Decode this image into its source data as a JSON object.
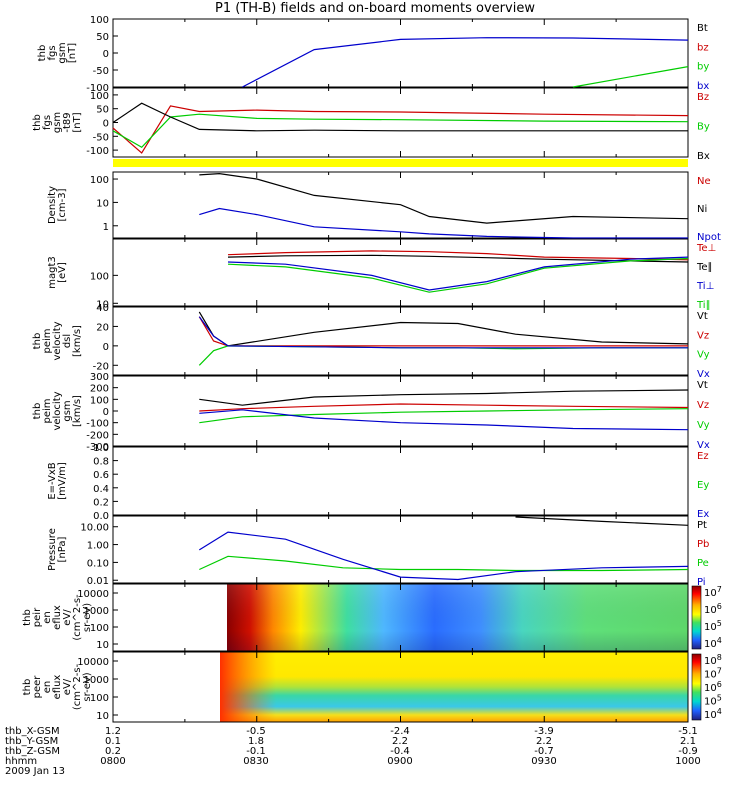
{
  "title": "P1 (TH-B) fields and on-board moments overview",
  "x_ticks": [
    "0800",
    "0830",
    "0900",
    "0930",
    "1000"
  ],
  "footer": {
    "rows": [
      {
        "label": "thb_X-GSM",
        "values": [
          "1.2",
          "-0.5",
          "-2.4",
          "-3.9",
          "-5.1"
        ]
      },
      {
        "label": "thb_Y-GSM",
        "values": [
          "0.1",
          "1.8",
          "2.2",
          "2.2",
          "2.1"
        ]
      },
      {
        "label": "thb_Z-GSM",
        "values": [
          "0.2",
          "-0.1",
          "-0.4",
          "-0.7",
          "-0.9"
        ]
      },
      {
        "label": "hhmm",
        "values": [
          "0800",
          "0830",
          "0900",
          "0930",
          "1000"
        ]
      }
    ],
    "date": "2009 Jan 13"
  },
  "chart_data": [
    {
      "type": "line",
      "title": "",
      "ylabel": [
        "thb",
        "fgs",
        "gsm",
        "[nT]"
      ],
      "yticks": [
        "100",
        "50",
        "0",
        "-50",
        "-100"
      ],
      "ylim": [
        -100,
        100
      ],
      "x": [
        8.0,
        8.22,
        8.45,
        8.7,
        9.0,
        9.3,
        9.6,
        10.0
      ],
      "series": [
        {
          "name": "Bt",
          "color": "#000000",
          "values": [
            null,
            null,
            null,
            null,
            null,
            null,
            null,
            null
          ]
        },
        {
          "name": "bz",
          "color": "#cc0000",
          "values": [
            null,
            null,
            null,
            null,
            null,
            null,
            null,
            null
          ]
        },
        {
          "name": "by",
          "color": "#00cc00",
          "values": [
            null,
            null,
            null,
            null,
            null,
            null,
            -100,
            -40
          ]
        },
        {
          "name": "bx",
          "color": "#0000cc",
          "values": [
            null,
            null,
            -100,
            10,
            40,
            45,
            44,
            38
          ]
        }
      ]
    },
    {
      "type": "line",
      "title": "",
      "ylabel": [
        "thb",
        "fgs",
        "gsm",
        "-t89",
        "[nT]"
      ],
      "yticks": [
        "100",
        "50",
        "0",
        "-50",
        "-100"
      ],
      "ylim": [
        -125,
        125
      ],
      "x": [
        8.0,
        8.1,
        8.2,
        8.3,
        8.5,
        8.7,
        9.0,
        9.5,
        10.0
      ],
      "series": [
        {
          "name": "Bz",
          "color": "#cc0000",
          "values": [
            -20,
            -110,
            60,
            40,
            45,
            40,
            38,
            30,
            25
          ]
        },
        {
          "name": "By",
          "color": "#00cc00",
          "values": [
            -30,
            -90,
            20,
            30,
            15,
            12,
            10,
            5,
            3
          ]
        },
        {
          "name": "Bx",
          "color": "#000000",
          "values": [
            0,
            70,
            20,
            -25,
            -30,
            -28,
            -30,
            -30,
            -30
          ]
        }
      ]
    },
    {
      "type": "line",
      "title": "",
      "ylabel": [
        "Density",
        "[cm-3]"
      ],
      "scale": "log",
      "yticks": [
        "100",
        "10",
        "1"
      ],
      "ylim": [
        0.3,
        200
      ],
      "x": [
        8.3,
        8.37,
        8.5,
        8.7,
        9.0,
        9.1,
        9.3,
        9.6,
        10.0
      ],
      "series": [
        {
          "name": "Ne",
          "color": "#cc0000",
          "values": [
            null,
            null,
            null,
            null,
            null,
            null,
            null,
            null,
            null
          ]
        },
        {
          "name": "Ni",
          "color": "#000000",
          "values": [
            150,
            170,
            100,
            20,
            8,
            2.5,
            1.3,
            2.5,
            2.0
          ]
        },
        {
          "name": "Npot",
          "color": "#0000cc",
          "values": [
            3,
            5.5,
            3,
            0.9,
            0.55,
            0.45,
            0.35,
            0.3,
            0.3
          ]
        }
      ]
    },
    {
      "type": "line",
      "title": "",
      "ylabel": [
        "magt3",
        "[eV]"
      ],
      "scale": "log",
      "yticks": [
        "100",
        "10"
      ],
      "ylim": [
        8,
        2000
      ],
      "x": [
        8.4,
        8.6,
        8.9,
        9.1,
        9.3,
        9.5,
        9.8,
        10.0
      ],
      "series": [
        {
          "name": "Te⊥",
          "color": "#cc0000",
          "values": [
            550,
            650,
            750,
            700,
            600,
            450,
            400,
            360
          ]
        },
        {
          "name": "Te∥",
          "color": "#000000",
          "values": [
            450,
            500,
            520,
            480,
            430,
            380,
            330,
            300
          ]
        },
        {
          "name": "Ti⊥",
          "color": "#0000cc",
          "values": [
            300,
            250,
            100,
            30,
            60,
            200,
            380,
            450
          ]
        },
        {
          "name": "Ti∥",
          "color": "#00cc00",
          "values": [
            250,
            200,
            80,
            25,
            50,
            180,
            330,
            400
          ]
        }
      ]
    },
    {
      "type": "line",
      "title": "",
      "ylabel": [
        "thb",
        "peim",
        "velocity",
        "dsl",
        "[km/s]"
      ],
      "yticks": [
        "40",
        "20",
        "0",
        "-20"
      ],
      "ylim": [
        -30,
        40
      ],
      "x": [
        8.3,
        8.35,
        8.4,
        8.7,
        9.0,
        9.2,
        9.4,
        9.7,
        10.0
      ],
      "series": [
        {
          "name": "Vt",
          "color": "#000000",
          "values": [
            35,
            10,
            0,
            14,
            24,
            23,
            12,
            4,
            2
          ]
        },
        {
          "name": "Vz",
          "color": "#cc0000",
          "values": [
            30,
            5,
            0,
            0,
            0,
            0,
            0,
            0,
            0
          ]
        },
        {
          "name": "Vy",
          "color": "#00cc00",
          "values": [
            -20,
            -5,
            0,
            -1,
            -2,
            -2,
            -3,
            -2,
            -2
          ]
        },
        {
          "name": "Vx",
          "color": "#0000cc",
          "values": [
            30,
            10,
            0,
            -1,
            -2,
            -2,
            -2,
            -2,
            -2
          ]
        }
      ]
    },
    {
      "type": "line",
      "title": "",
      "ylabel": [
        "thb",
        "peim",
        "velocity",
        "gsm",
        "[km/s]"
      ],
      "yticks": [
        "300",
        "200",
        "100",
        "0",
        "-100",
        "-200",
        "-300"
      ],
      "ylim": [
        -300,
        300
      ],
      "x": [
        8.3,
        8.45,
        8.7,
        9.0,
        9.3,
        9.6,
        10.0
      ],
      "series": [
        {
          "name": "Vt",
          "color": "#000000",
          "values": [
            100,
            50,
            120,
            140,
            150,
            170,
            180
          ]
        },
        {
          "name": "Vz",
          "color": "#cc0000",
          "values": [
            0,
            20,
            40,
            60,
            50,
            40,
            30
          ]
        },
        {
          "name": "Vy",
          "color": "#00cc00",
          "values": [
            -100,
            -50,
            -30,
            -10,
            0,
            10,
            20
          ]
        },
        {
          "name": "Vx",
          "color": "#0000cc",
          "values": [
            -20,
            10,
            -60,
            -100,
            -120,
            -150,
            -160
          ]
        }
      ]
    },
    {
      "type": "line",
      "title": "",
      "ylabel": [
        "E=-VxB",
        "[mV/m]"
      ],
      "yticks": [
        "1.0",
        "0.8",
        "0.6",
        "0.4",
        "0.2",
        "0.0"
      ],
      "ylim": [
        0,
        1
      ],
      "x": [],
      "series": [
        {
          "name": "Ez",
          "color": "#cc0000",
          "values": []
        },
        {
          "name": "Ey",
          "color": "#00cc00",
          "values": []
        },
        {
          "name": "Ex",
          "color": "#0000cc",
          "values": []
        }
      ]
    },
    {
      "type": "line",
      "title": "",
      "ylabel": [
        "Pressure",
        "[nPa]"
      ],
      "scale": "log",
      "yticks": [
        "10.00",
        "1.00",
        "0.10",
        "0.01"
      ],
      "ylim": [
        0.007,
        40
      ],
      "x": [
        8.3,
        8.4,
        8.6,
        8.8,
        9.0,
        9.2,
        9.4,
        9.7,
        10.0
      ],
      "series": [
        {
          "name": "Pt",
          "color": "#000000",
          "values": [
            null,
            null,
            null,
            null,
            null,
            null,
            35,
            20,
            12
          ]
        },
        {
          "name": "Pb",
          "color": "#cc0000",
          "values": [
            null,
            null,
            null,
            null,
            null,
            null,
            null,
            null,
            null
          ]
        },
        {
          "name": "Pe",
          "color": "#00cc00",
          "values": [
            0.04,
            0.22,
            0.12,
            0.05,
            0.04,
            0.04,
            0.035,
            0.035,
            0.04
          ]
        },
        {
          "name": "Pi",
          "color": "#0000cc",
          "values": [
            0.5,
            5,
            2,
            0.15,
            0.015,
            0.011,
            0.03,
            0.05,
            0.06
          ]
        }
      ]
    },
    {
      "type": "heatmap",
      "title": "",
      "ylabel": [
        "thb",
        "peir",
        "en",
        "eflux",
        "eV/",
        "(cm^2-s-",
        "sr-eV)"
      ],
      "yticks": [
        "10000",
        "1000",
        "100",
        "10"
      ],
      "colorbar_ticks": [
        "10^7",
        "10^6",
        "10^5",
        "10^4"
      ]
    },
    {
      "type": "heatmap",
      "title": "",
      "ylabel": [
        "thb",
        "peer",
        "en",
        "eflux",
        "eV/",
        "(cm^2-s-",
        "sr-eV)"
      ],
      "yticks": [
        "10000",
        "1000",
        "100",
        "10"
      ],
      "colorbar_ticks": [
        "10^8",
        "10^7",
        "10^6",
        "10^5",
        "10^4"
      ]
    }
  ]
}
